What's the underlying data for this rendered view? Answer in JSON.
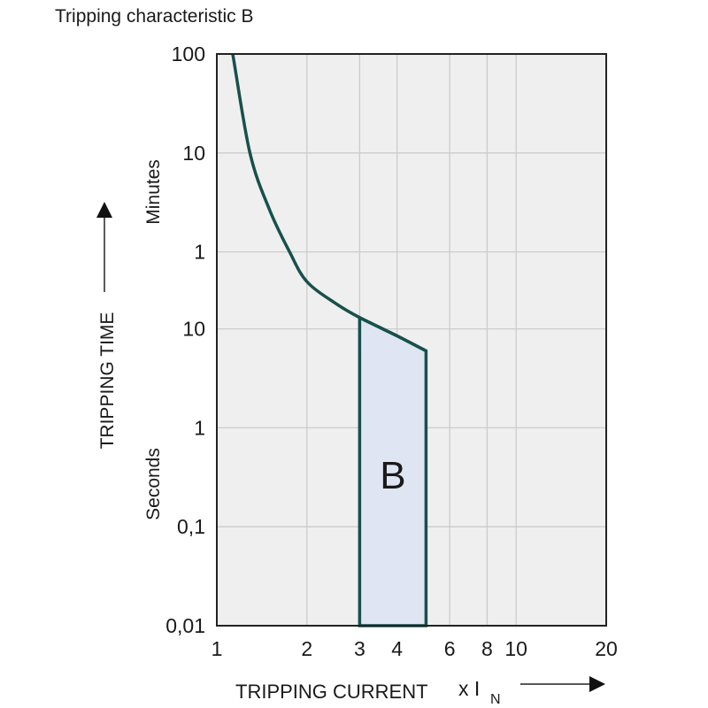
{
  "chart_data": {
    "type": "line",
    "title": "Tripping characteristic B",
    "xlabel": "TRIPPING CURRENT",
    "xunit": "x I",
    "xunit_sub": "N",
    "ylabel": "TRIPPING TIME",
    "y_unit_labels": {
      "minutes": "Minutes",
      "seconds": "Seconds"
    },
    "x_scale": "log",
    "y_scale": "log",
    "xlim": [
      1,
      20
    ],
    "ylim_seconds": [
      0.01,
      6000
    ],
    "grid": true,
    "x_ticks": [
      {
        "value": 1,
        "label": "1"
      },
      {
        "value": 2,
        "label": "2"
      },
      {
        "value": 3,
        "label": "3"
      },
      {
        "value": 4,
        "label": "4"
      },
      {
        "value": 6,
        "label": "6"
      },
      {
        "value": 8,
        "label": "8"
      },
      {
        "value": 10,
        "label": "10"
      },
      {
        "value": 20,
        "label": "20"
      }
    ],
    "y_ticks": [
      {
        "seconds": 6000,
        "label": "100"
      },
      {
        "seconds": 600,
        "label": "10"
      },
      {
        "seconds": 60,
        "label": "1"
      },
      {
        "seconds": 10,
        "label": "10"
      },
      {
        "seconds": 1,
        "label": "1"
      },
      {
        "seconds": 0.1,
        "label": "0,1"
      },
      {
        "seconds": 0.01,
        "label": "0,01"
      }
    ],
    "series": [
      {
        "points_x": [
          1.13,
          1.29,
          1.5,
          1.75,
          2,
          2.5,
          3,
          4,
          5
        ],
        "points_seconds": [
          6000,
          600,
          160,
          60,
          30,
          18,
          13,
          8.5,
          6
        ]
      }
    ],
    "region": {
      "label": "B",
      "x_from": 3,
      "x_to": 5,
      "seconds_min": 0.01
    },
    "colors": {
      "curve": "#17504c",
      "region_fill": "#dfe5f2",
      "plot_bg": "#efefef",
      "grid": "#cccccc"
    }
  }
}
